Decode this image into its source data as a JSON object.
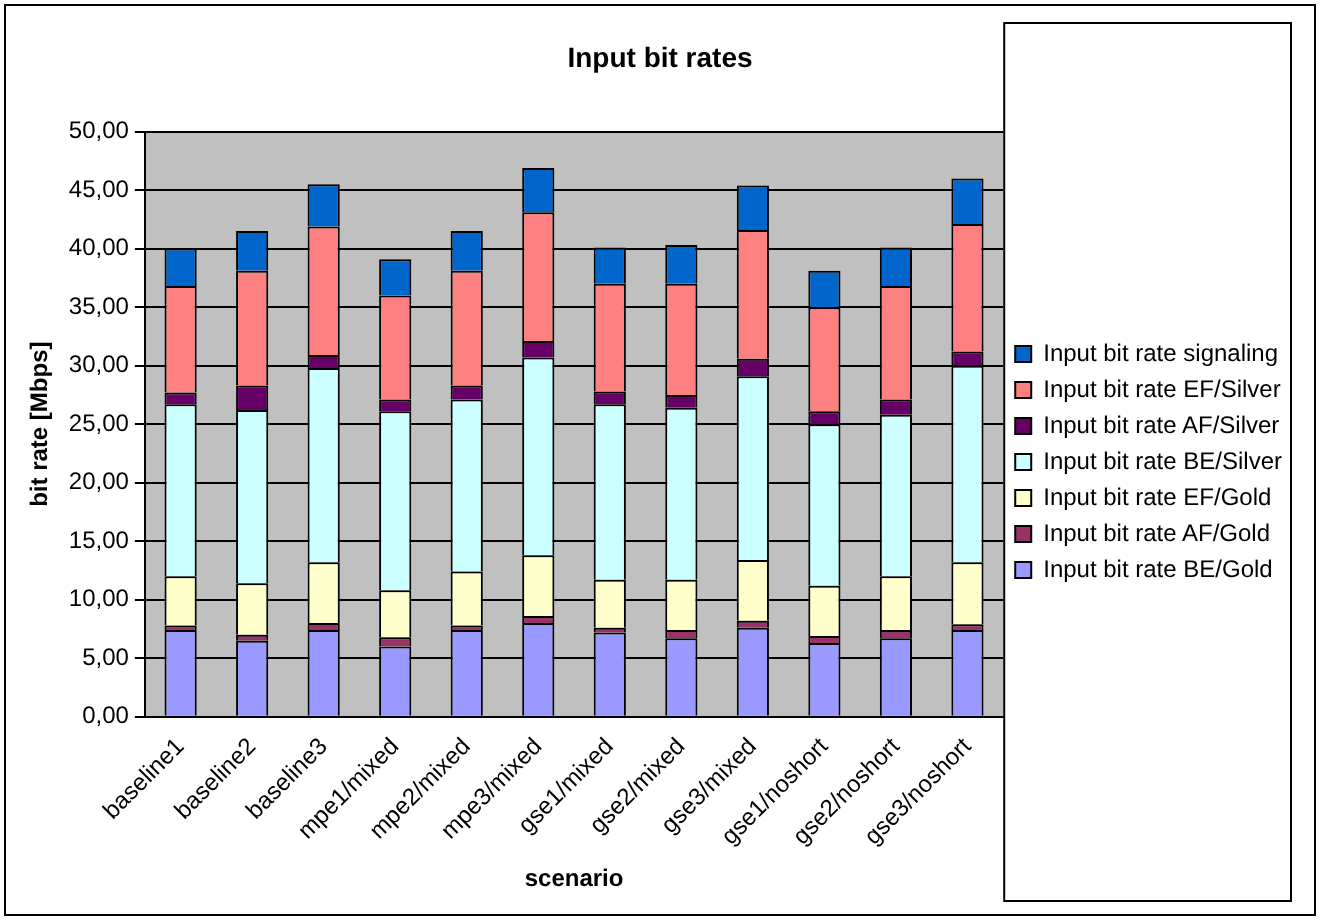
{
  "chart_data": {
    "type": "bar",
    "title": "Input bit rates",
    "xlabel": "scenario",
    "ylabel": "bit rate [Mbps]",
    "categories": [
      "baseline1",
      "baseline2",
      "baseline3",
      "mpe1/mixed",
      "mpe2/mixed",
      "mpe3/mixed",
      "gse1/mixed",
      "gse2/mixed",
      "gse3/mixed",
      "gse1/noshort",
      "gse2/noshort",
      "gse3/noshort"
    ],
    "stacked": true,
    "grid": "y",
    "legend": "right",
    "ylim": [
      0,
      50
    ],
    "yticks": [
      {
        "value": 0,
        "label": "0,00"
      },
      {
        "value": 5,
        "label": "5,00"
      },
      {
        "value": 10,
        "label": "10,00"
      },
      {
        "value": 15,
        "label": "15,00"
      },
      {
        "value": 20,
        "label": "20,00"
      },
      {
        "value": 25,
        "label": "25,00"
      },
      {
        "value": 30,
        "label": "30,00"
      },
      {
        "value": 35,
        "label": "35,00"
      },
      {
        "value": 40,
        "label": "40,00"
      },
      {
        "value": 45,
        "label": "45,00"
      },
      {
        "value": 50,
        "label": "50,00"
      }
    ],
    "series": [
      {
        "name": "Input bit rate BE/Gold",
        "color": "#9999ff",
        "values": [
          7.4,
          6.5,
          7.4,
          6.0,
          7.4,
          8.0,
          7.2,
          6.7,
          7.6,
          6.3,
          6.7,
          7.4
        ]
      },
      {
        "name": "Input bit rate AF/Gold",
        "color": "#993366",
        "values": [
          0.4,
          0.5,
          0.6,
          0.8,
          0.4,
          0.6,
          0.4,
          0.7,
          0.6,
          0.6,
          0.7,
          0.5
        ]
      },
      {
        "name": "Input bit rate EF/Gold",
        "color": "#ffffcc",
        "values": [
          4.2,
          4.4,
          5.2,
          4.0,
          4.6,
          5.2,
          4.1,
          4.3,
          5.2,
          4.3,
          4.6,
          5.3
        ]
      },
      {
        "name": "Input bit rate BE/Silver",
        "color": "#ccffff",
        "values": [
          14.7,
          14.8,
          16.6,
          15.3,
          14.7,
          16.9,
          15.0,
          14.7,
          15.7,
          13.8,
          13.8,
          16.8
        ]
      },
      {
        "name": "Input bit rate AF/Silver",
        "color": "#660066",
        "values": [
          1.0,
          2.1,
          1.1,
          1.0,
          1.2,
          1.4,
          1.1,
          1.1,
          1.5,
          1.1,
          1.3,
          1.2
        ]
      },
      {
        "name": "Input bit rate EF/Silver",
        "color": "#ff8080",
        "values": [
          9.1,
          9.8,
          11.0,
          8.9,
          9.8,
          11.0,
          9.2,
          9.5,
          11.0,
          8.9,
          9.7,
          10.9
        ]
      },
      {
        "name": "Input bit rate signaling",
        "color": "#0066cc",
        "values": [
          3.2,
          3.4,
          3.6,
          3.1,
          3.4,
          3.8,
          3.1,
          3.3,
          3.8,
          3.1,
          3.3,
          3.9
        ]
      }
    ]
  }
}
